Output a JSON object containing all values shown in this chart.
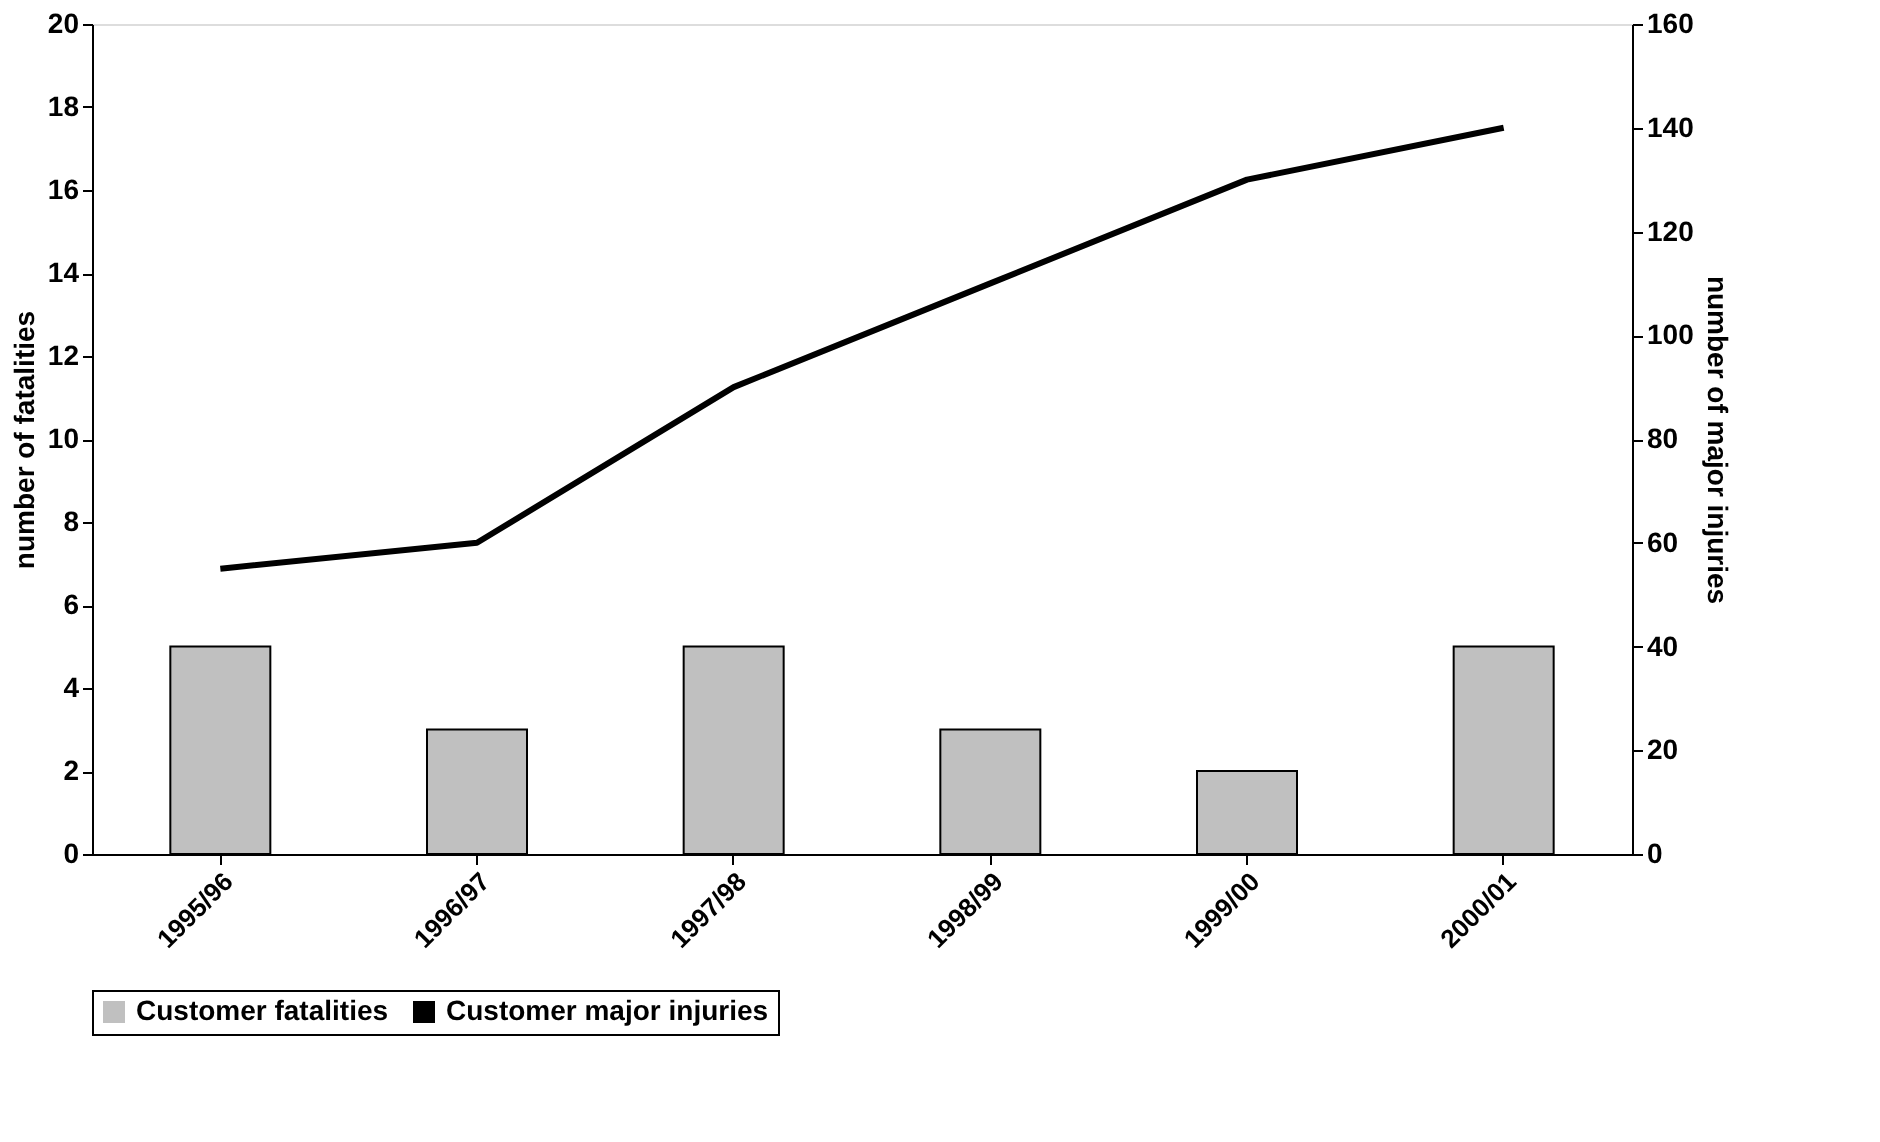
{
  "chart_data": {
    "type": "bar",
    "categories": [
      "1995/96",
      "1996/97",
      "1997/98",
      "1998/99",
      "1999/00",
      "2000/01"
    ],
    "ylabel": "number of fatalities",
    "y2label": "number of major injuries",
    "series": [
      {
        "name": "Customer fatalities",
        "color": "#c0c0c0",
        "values": [
          5,
          3,
          5,
          3,
          2,
          5
        ]
      },
      {
        "name": "Customer major injuries",
        "type": "line",
        "axis": "y2",
        "color": "#000000",
        "values": [
          55,
          60,
          90,
          110,
          130,
          140
        ]
      }
    ],
    "ylim": [
      0,
      20
    ],
    "yticks": [
      0,
      2,
      4,
      6,
      8,
      10,
      12,
      14,
      16,
      18,
      20
    ],
    "y2lim": [
      0,
      160
    ],
    "y2ticks": [
      0,
      20,
      40,
      60,
      80,
      100,
      120,
      140,
      160
    ],
    "grid": false,
    "legend": "bottom",
    "line_style": "solid",
    "marker": "none"
  }
}
